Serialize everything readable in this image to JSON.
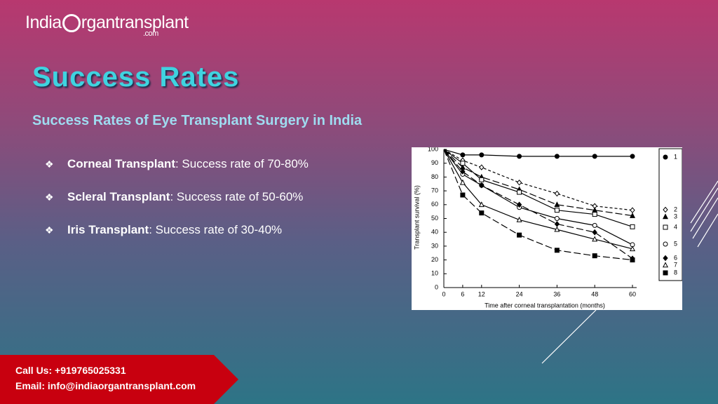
{
  "logo": {
    "left": "India",
    "right": "rgantransplant",
    "domain": ".com"
  },
  "title": "Success Rates",
  "subtitle": "Success Rates of Eye Transplant Surgery in India",
  "bullets": [
    {
      "label": "Corneal Transplant",
      "text": ": Success rate of 70-80%"
    },
    {
      "label": "Scleral Transplant",
      "text": ": Success rate of 50-60%"
    },
    {
      "label": "Iris Transplant",
      "text": ": Success rate of 30-40%"
    }
  ],
  "contact": {
    "phone": "Call Us: +919765025331",
    "email": "Email: info@indiaorgantransplant.com"
  },
  "chart_data": {
    "type": "line",
    "x_label": "Time after corneal transplantation (months)",
    "y_label": "Transplant survival (%)",
    "x": [
      0,
      6,
      12,
      24,
      36,
      48,
      60
    ],
    "xlim": [
      0,
      60
    ],
    "xticks": [
      0,
      6,
      12,
      24,
      36,
      48,
      60
    ],
    "ylim": [
      0,
      100
    ],
    "yticks": [
      0,
      10,
      20,
      30,
      40,
      50,
      60,
      70,
      80,
      90,
      100
    ],
    "grid": false,
    "legend": "right",
    "series": [
      {
        "name": "1",
        "color": "#000000",
        "marker": "circle",
        "filled": true,
        "dash": "solid",
        "values": [
          100,
          96,
          96,
          95,
          95,
          95,
          95
        ]
      },
      {
        "name": "2",
        "color": "#000000",
        "marker": "diamond",
        "filled": false,
        "dash": "short",
        "values": [
          100,
          92,
          87,
          76,
          68,
          59,
          56
        ]
      },
      {
        "name": "3",
        "color": "#000000",
        "marker": "triangle",
        "filled": true,
        "dash": "long",
        "values": [
          100,
          87,
          80,
          71,
          60,
          56,
          52
        ]
      },
      {
        "name": "4",
        "color": "#000000",
        "marker": "square",
        "filled": false,
        "dash": "solid",
        "values": [
          100,
          90,
          78,
          69,
          56,
          53,
          44
        ]
      },
      {
        "name": "5",
        "color": "#000000",
        "marker": "circle",
        "filled": false,
        "dash": "solid",
        "values": [
          100,
          82,
          74,
          58,
          50,
          45,
          31
        ]
      },
      {
        "name": "6",
        "color": "#000000",
        "marker": "diamond",
        "filled": true,
        "dash": "long",
        "values": [
          100,
          84,
          74,
          60,
          46,
          40,
          21
        ]
      },
      {
        "name": "7",
        "color": "#000000",
        "marker": "triangle",
        "filled": false,
        "dash": "solid",
        "values": [
          100,
          76,
          60,
          49,
          42,
          35,
          28
        ]
      },
      {
        "name": "8",
        "color": "#000000",
        "marker": "square",
        "filled": true,
        "dash": "long",
        "values": [
          100,
          67,
          54,
          38,
          27,
          23,
          20
        ]
      }
    ]
  }
}
